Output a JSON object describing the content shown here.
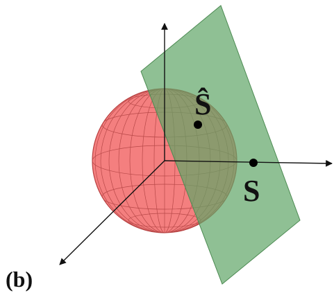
{
  "panel_label": "(b)",
  "points": [
    {
      "label": "Ŝ"
    },
    {
      "label": "S"
    }
  ]
}
